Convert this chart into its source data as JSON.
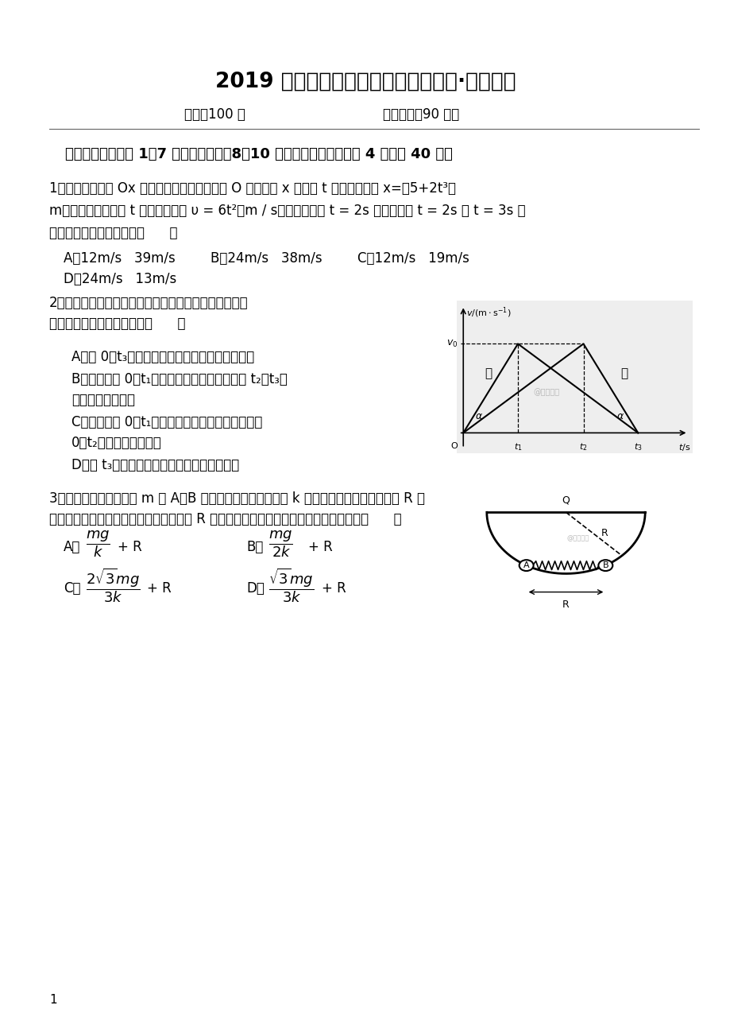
{
  "title": "2019 届第一学期第二次月考高三年级·物理试卷",
  "subtitle_left": "满分：100 分",
  "subtitle_right": "考试时间：90 分钟",
  "section1": "一、选择题（其中 1～7 小题为单选题，8～10 小题为多选题，每小题 4 分，共 40 分）",
  "q1_line1": "1．一质点沿直线 Ox 方向做变速运动，它离开 O 点的距离 x 随时间 t 变化的关系为 x=（5+2t³）",
  "q1_line2": "m，它的速度随时间 t 变化的关系为 υ = 6t²（m / s），该质点在 t = 2s 时的速度和 t = 2s 到 t = 3s 间",
  "q1_line3": "的平均速度的大小分别为（      ）",
  "q1_opts": [
    "A．12m/s   39m/s",
    "B．24m/s   38m/s",
    "C．12m/s   19m/s"
  ],
  "q1_optD": "D．24m/s   13m/s",
  "q2_line1": "2．如图所示为甲、乙两质点做直线运动的速度一时间图",
  "q2_line2": "象，则下列说法中正确的是（      ）",
  "q2_A": "A．在 0～t₃时间内甲、乙两质点的平均速度相等",
  "q2_B1": "B．甲质点在 0～t₁时间内的加速度与乙质点在 t₂～t₃时",
  "q2_B2": "间内的加速度相同",
  "q2_C1": "C．甲质点在 0～t₁时间内的平均速度小于乙质点在",
  "q2_C2": "0～t₂时间内的平均速度",
  "q2_D": "D．在 t₃时刻，甲、乙两质点都回到了出发点",
  "q3_line1": "3．如图所示，质量均为 m 的 A、B 两球，由一根劲度系数为 k 的轻弹簧连接静止于半径为 R 的",
  "q3_line2": "光滑半球形碗中，弹簧水平，两球间距为 R 且球半径远小于碗的半径．则弹簧的原长为（      ）",
  "page_num": "1",
  "bg_color": "#ffffff",
  "text_color": "#000000",
  "graph_bg": "#f0f0f0",
  "watermark_color": "#bbbbbb"
}
